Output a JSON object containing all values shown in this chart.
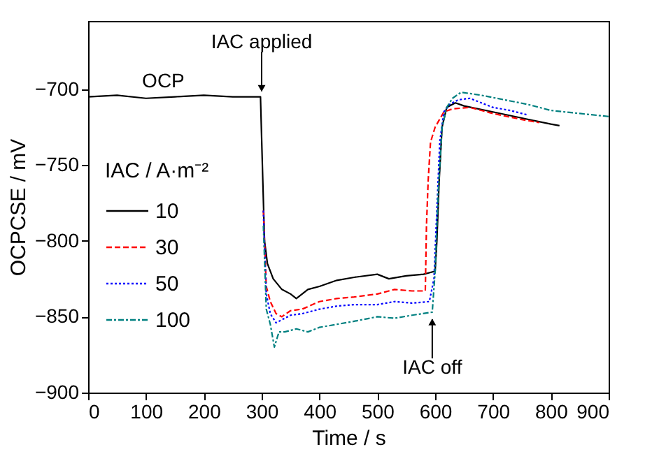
{
  "chart_data": {
    "type": "line",
    "xlabel": "Time / s",
    "ylabel": "OCPCSE / mV",
    "legend_title": "IAC / A·m⁻²",
    "xlim": [
      0,
      900
    ],
    "xticks": [
      0,
      100,
      200,
      300,
      400,
      500,
      600,
      700,
      800,
      900
    ],
    "ylim": [
      -900,
      -655
    ],
    "yticks": [
      -900,
      -850,
      -800,
      -750,
      -700
    ],
    "grid": false,
    "legend": "left",
    "annotations": [
      {
        "text": "IAC applied",
        "x": 300,
        "y": -705
      },
      {
        "text": "IAC off",
        "x": 595,
        "y": -848
      },
      {
        "text": "OCP",
        "x": 130,
        "y": -705
      }
    ],
    "series": [
      {
        "name": "10",
        "color": "#000000",
        "line_style": "solid",
        "x": [
          0,
          50,
          100,
          150,
          200,
          250,
          298,
          302,
          305,
          310,
          320,
          335,
          350,
          360,
          380,
          400,
          430,
          460,
          500,
          520,
          550,
          580,
          600,
          603,
          607,
          612,
          620,
          635,
          650,
          700,
          750,
          800,
          815
        ],
        "values": [
          -705,
          -704,
          -706,
          -705,
          -704,
          -705,
          -705,
          -760,
          -800,
          -815,
          -825,
          -832,
          -835,
          -838,
          -832,
          -830,
          -826,
          -824,
          -822,
          -825,
          -823,
          -822,
          -820,
          -800,
          -760,
          -725,
          -712,
          -709,
          -711,
          -715,
          -719,
          -723,
          -724
        ]
      },
      {
        "name": "30",
        "color": "#ff0000",
        "line_style": "dashed",
        "x": [
          303,
          308,
          315,
          325,
          335,
          350,
          370,
          400,
          430,
          460,
          500,
          530,
          560,
          583,
          585,
          588,
          592,
          600,
          615,
          630,
          660,
          700,
          750,
          780
        ],
        "values": [
          -780,
          -830,
          -840,
          -848,
          -850,
          -846,
          -845,
          -840,
          -838,
          -837,
          -835,
          -832,
          -833,
          -833,
          -790,
          -760,
          -735,
          -725,
          -715,
          -713,
          -712,
          -716,
          -720,
          -722
        ]
      },
      {
        "name": "50",
        "color": "#0000ff",
        "line_style": "dotted",
        "x": [
          303,
          308,
          315,
          325,
          335,
          350,
          370,
          400,
          430,
          460,
          500,
          530,
          560,
          590,
          598,
          603,
          608,
          615,
          625,
          640,
          660,
          700,
          730,
          760
        ],
        "values": [
          -780,
          -835,
          -848,
          -854,
          -852,
          -849,
          -848,
          -845,
          -843,
          -842,
          -842,
          -840,
          -841,
          -840,
          -825,
          -780,
          -735,
          -715,
          -710,
          -707,
          -706,
          -712,
          -714,
          -717
        ]
      },
      {
        "name": "100",
        "color": "#008080",
        "line_style": "dashdot",
        "x": [
          303,
          308,
          315,
          322,
          330,
          340,
          360,
          380,
          400,
          430,
          460,
          500,
          530,
          560,
          595,
          600,
          605,
          612,
          620,
          630,
          645,
          680,
          720,
          760,
          800,
          850,
          900
        ],
        "values": [
          -790,
          -845,
          -855,
          -870,
          -860,
          -860,
          -858,
          -860,
          -857,
          -855,
          -853,
          -850,
          -851,
          -849,
          -847,
          -820,
          -770,
          -725,
          -712,
          -706,
          -702,
          -704,
          -707,
          -710,
          -714,
          -716,
          -718
        ]
      }
    ]
  }
}
